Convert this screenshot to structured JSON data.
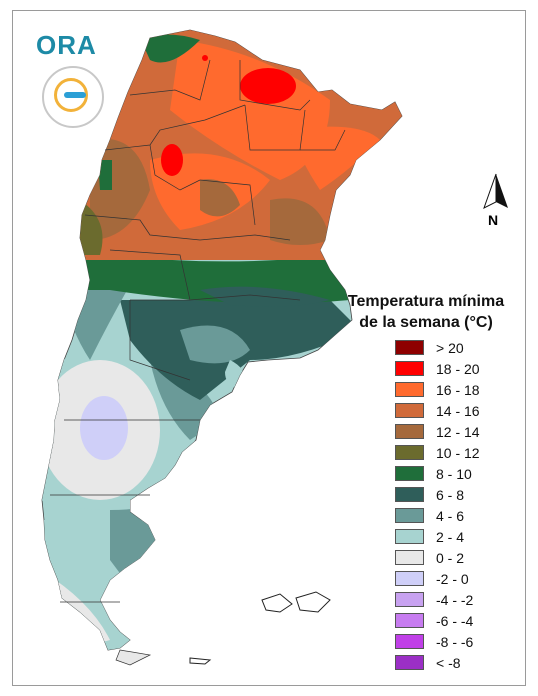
{
  "logo": {
    "text": "ORA"
  },
  "compass": {
    "label": "N"
  },
  "legend": {
    "title_line1": "Temperatura mínima",
    "title_line2": "de la semana (°C)",
    "items": [
      {
        "label": "> 20",
        "color": "#8e0000"
      },
      {
        "label": "18 - 20",
        "color": "#ff0000"
      },
      {
        "label": "16 - 18",
        "color": "#ff6a2e"
      },
      {
        "label": "14 - 16",
        "color": "#d06a3a"
      },
      {
        "label": "12 - 14",
        "color": "#a5693c"
      },
      {
        "label": "10 - 12",
        "color": "#6b6b2e"
      },
      {
        "label": "8 - 10",
        "color": "#1f6e3a"
      },
      {
        "label": "6 - 8",
        "color": "#2f5e5a"
      },
      {
        "label": "4 - 6",
        "color": "#6a9a98"
      },
      {
        "label": "2 - 4",
        "color": "#a7d3d0"
      },
      {
        "label": "0 - 2",
        "color": "#e8e8e8"
      },
      {
        "label": "-2 - 0",
        "color": "#cfcff8"
      },
      {
        "label": "-4 - -2",
        "color": "#c8a2f0"
      },
      {
        "label": "-6 - -4",
        "color": "#c77cf0"
      },
      {
        "label": "-8 - -6",
        "color": "#c040e8"
      },
      {
        "label": "< -8",
        "color": "#9b2fc6"
      }
    ]
  }
}
